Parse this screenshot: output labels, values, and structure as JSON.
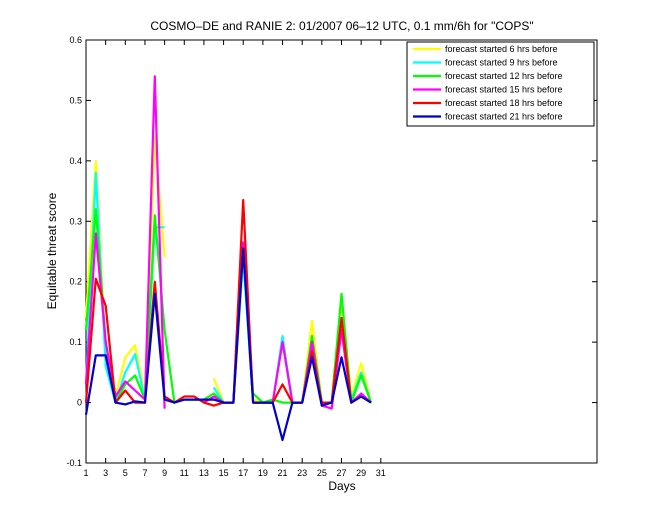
{
  "chart_data": {
    "type": "line",
    "title": "COSMO–DE and RANIE 2: 01/2007 06–12 UTC, 0.1 mm/6h for \"COPS\"",
    "xlabel": "Days",
    "ylabel": "Equitable threat score",
    "xlim": [
      1,
      53
    ],
    "ylim": [
      -0.1,
      0.6
    ],
    "xticks": [
      1,
      3,
      5,
      7,
      9,
      11,
      13,
      15,
      17,
      19,
      21,
      23,
      25,
      27,
      29,
      31
    ],
    "xtick_labels": [
      "1",
      "3",
      "5",
      "7",
      "9",
      "11",
      "13",
      "15",
      "17",
      "19",
      "21",
      "23",
      "25",
      "27",
      "29",
      "31"
    ],
    "yticks": [
      -0.1,
      0,
      0.1,
      0.2,
      0.3,
      0.4,
      0.5,
      0.6
    ],
    "ytick_labels": [
      "-0.1",
      "0",
      "0.1",
      "0.2",
      "0.3",
      "0.4",
      "0.5",
      "0.6"
    ],
    "grid": false,
    "legend_position": "top-right",
    "series": [
      {
        "name": "forecast started 6 hrs before",
        "color": "#ffff00",
        "x": [
          1,
          2,
          3,
          4,
          5,
          6,
          7,
          8,
          9
        ],
        "y": [
          0.14,
          0.4,
          0.07,
          0.01,
          0.075,
          0.095,
          0.01,
          0.44,
          0.24
        ]
      },
      {
        "name": "forecast started 6 hrs before",
        "color": "#ffff00",
        "x": [
          14,
          15,
          16,
          17,
          18,
          19,
          20,
          21,
          22,
          23,
          24,
          25,
          26,
          27,
          28,
          29,
          30
        ],
        "y": [
          0.04,
          0.0,
          0.0,
          0.25,
          0.005,
          0.0,
          0.0,
          0.105,
          0.0,
          0.0,
          0.135,
          0.0,
          0.0,
          0.17,
          0.01,
          0.065,
          0.0
        ]
      },
      {
        "name": "forecast started 9 hrs before",
        "color": "#00ffff",
        "x": [
          1,
          2,
          3,
          4,
          5,
          6,
          7,
          8,
          9
        ],
        "y": [
          0.03,
          0.38,
          0.06,
          0.0,
          0.05,
          0.08,
          0.005,
          0.29,
          0.29
        ]
      },
      {
        "name": "forecast started 9 hrs before",
        "color": "#00ffff",
        "x": [
          14,
          15,
          16,
          17,
          18,
          19,
          20,
          21,
          22,
          23,
          24,
          25,
          26,
          27,
          28,
          29,
          30
        ],
        "y": [
          0.025,
          0.0,
          0.0,
          0.24,
          0.0,
          0.0,
          0.0,
          0.11,
          0.0,
          0.0,
          0.11,
          0.0,
          0.0,
          0.12,
          0.005,
          0.05,
          0.0
        ]
      },
      {
        "name": "forecast started 12 hrs before",
        "color": "#00ff00",
        "x": [
          1,
          2,
          3,
          4,
          5,
          6,
          7,
          8,
          9,
          10,
          11,
          12,
          13,
          14,
          15,
          16,
          17,
          18,
          19,
          20,
          21,
          22,
          23,
          24,
          25,
          26,
          27,
          28,
          29,
          30
        ],
        "y": [
          0.12,
          0.32,
          0.1,
          0.0,
          0.03,
          0.045,
          0.005,
          0.31,
          0.12,
          0.0,
          0.005,
          0.005,
          0.005,
          0.015,
          0.0,
          0.0,
          0.26,
          0.015,
          0.0,
          0.005,
          0.0,
          0.0,
          0.0,
          0.11,
          0.0,
          0.0,
          0.18,
          0.0,
          0.045,
          0.0
        ]
      },
      {
        "name": "forecast started 15 hrs before",
        "color": "#ff00ff",
        "x": [
          1,
          2,
          3,
          4,
          5,
          6,
          7,
          8,
          9
        ],
        "y": [
          0.03,
          0.28,
          0.1,
          0.01,
          0.035,
          0.02,
          0.005,
          0.54,
          -0.01
        ]
      },
      {
        "name": "forecast started 15 hrs before",
        "color": "#ff00ff",
        "x": [
          13,
          14,
          15,
          16,
          17,
          18,
          19,
          20,
          21,
          22,
          23,
          24,
          25,
          26,
          27,
          28,
          29,
          30
        ],
        "y": [
          0.0,
          0.01,
          0.0,
          0.0,
          0.265,
          0.0,
          0.0,
          0.0,
          0.1,
          0.0,
          0.0,
          0.1,
          -0.005,
          -0.01,
          0.12,
          0.0,
          0.015,
          0.0
        ]
      },
      {
        "name": "forecast started 18 hrs before",
        "color": "#ff0000",
        "x": [
          1,
          2,
          3,
          4,
          5,
          6,
          7,
          8,
          9,
          10,
          11,
          12,
          13,
          14,
          15,
          16,
          17,
          18,
          19,
          20,
          21,
          22,
          23,
          24,
          25,
          26,
          27,
          28,
          29,
          30
        ],
        "y": [
          0.0,
          0.205,
          0.16,
          0.0,
          0.02,
          0.0,
          0.0,
          0.2,
          0.01,
          0.0,
          0.01,
          0.01,
          0.0,
          -0.005,
          0.0,
          0.0,
          0.335,
          0.0,
          0.0,
          0.0,
          0.03,
          0.0,
          0.0,
          0.085,
          0.0,
          0.0,
          0.14,
          0.0,
          0.01,
          0.0
        ]
      },
      {
        "name": "forecast started 21 hrs before",
        "color": "#0000cc",
        "x": [
          1,
          2,
          3,
          4,
          5,
          6,
          7,
          8,
          9,
          10,
          11,
          12,
          13,
          14,
          15,
          16,
          17,
          18,
          19,
          20,
          21,
          22,
          23,
          24,
          25,
          26,
          27,
          28,
          29,
          30
        ],
        "y": [
          -0.02,
          0.078,
          0.078,
          0.0,
          -0.003,
          0.002,
          0.0,
          0.18,
          0.005,
          0.0,
          0.005,
          0.005,
          0.005,
          0.005,
          0.0,
          0.0,
          0.255,
          0.0,
          0.0,
          0.0,
          -0.062,
          0.0,
          0.0,
          0.075,
          -0.005,
          0.0,
          0.075,
          0.0,
          0.01,
          0.0
        ]
      }
    ],
    "legend": [
      {
        "label": "forecast started 6 hrs before",
        "color": "#ffff00"
      },
      {
        "label": "forecast started 9 hrs before",
        "color": "#00ffff"
      },
      {
        "label": "forecast started 12 hrs before",
        "color": "#00ff00"
      },
      {
        "label": "forecast started 15 hrs before",
        "color": "#ff00ff"
      },
      {
        "label": "forecast started 18 hrs before",
        "color": "#ff0000"
      },
      {
        "label": "forecast started 21 hrs before",
        "color": "#0000cc"
      }
    ]
  }
}
